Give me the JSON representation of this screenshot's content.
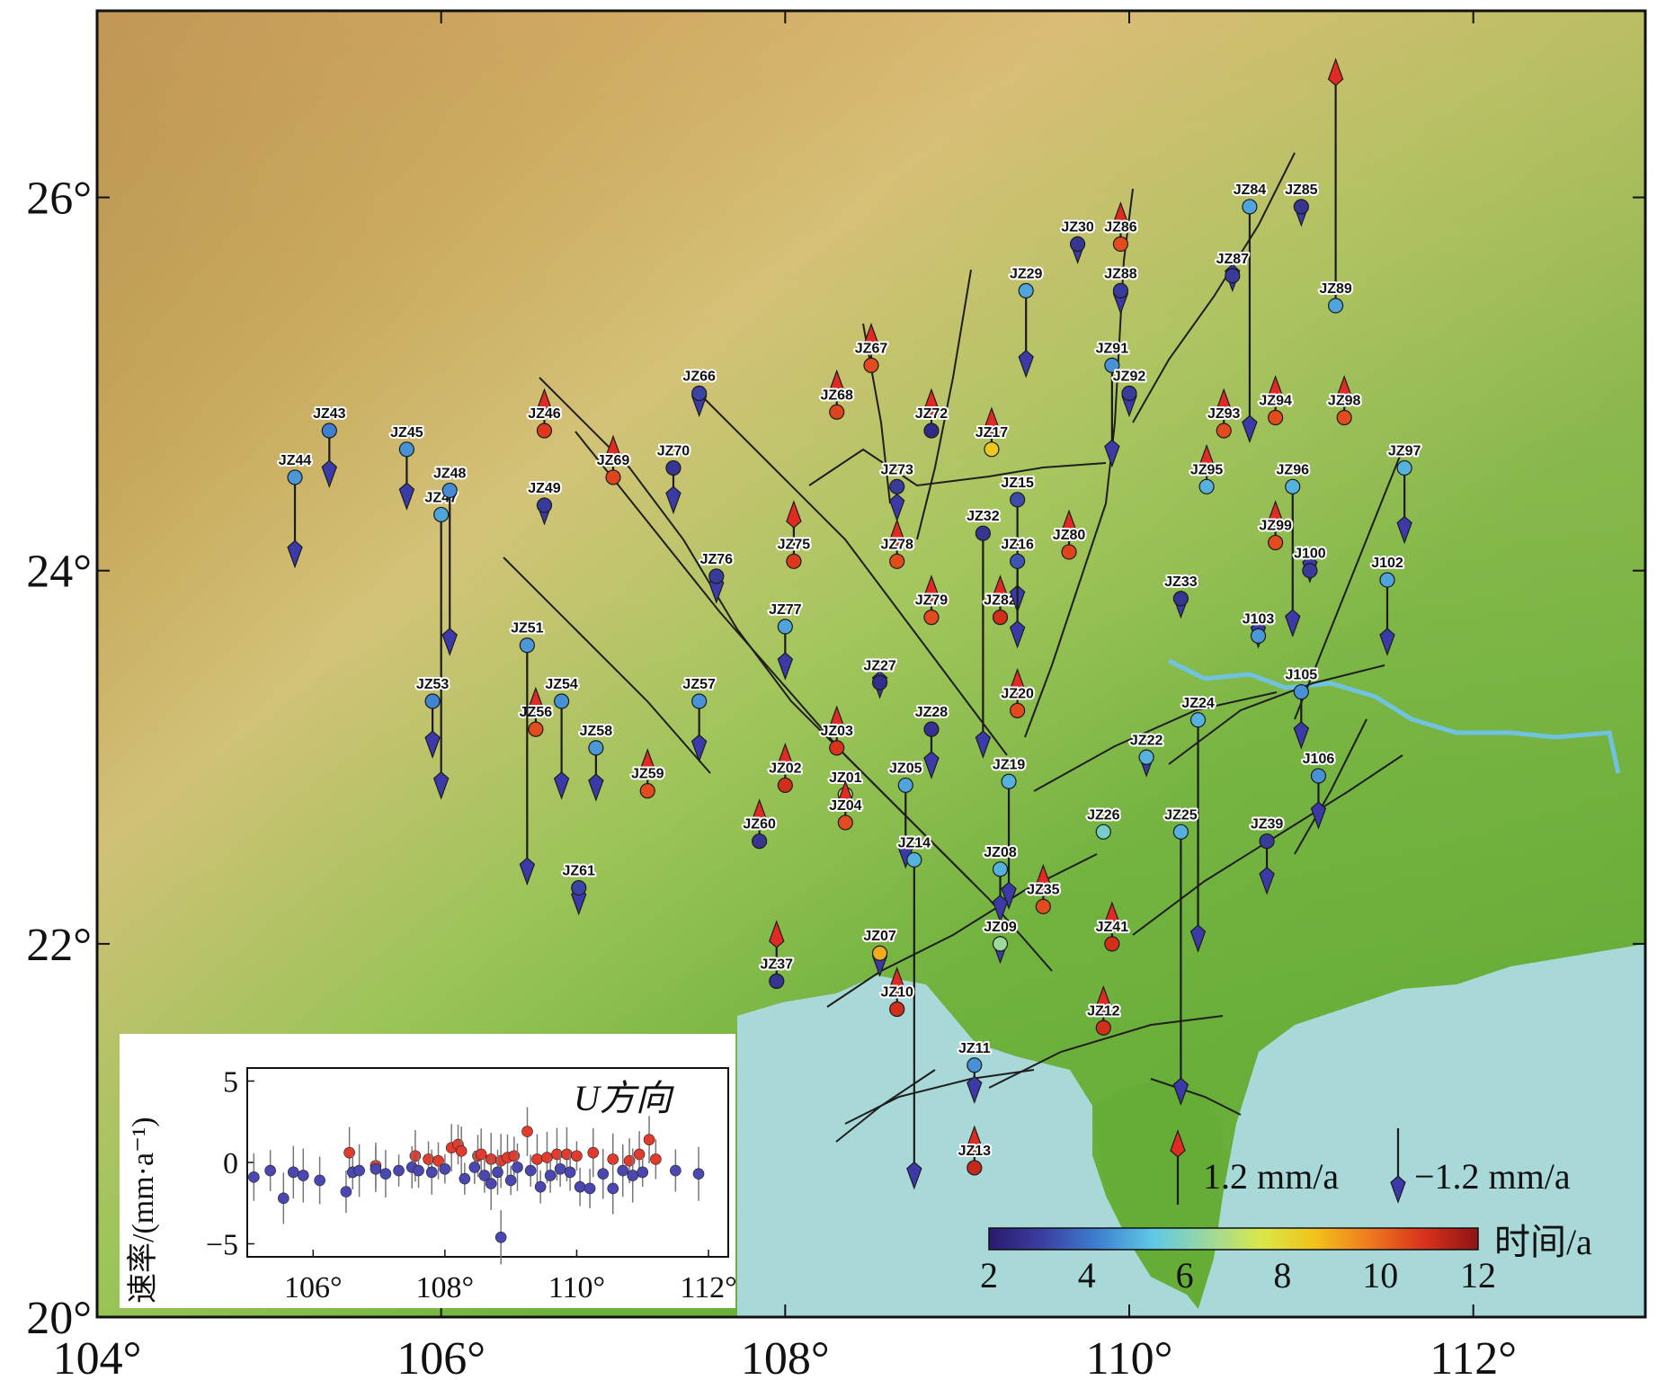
{
  "map": {
    "lon_range": [
      104,
      113
    ],
    "lat_range": [
      20,
      27
    ],
    "lon_ticks": [
      104,
      106,
      108,
      110,
      112
    ],
    "lat_ticks": [
      20,
      22,
      24,
      26
    ],
    "lon_tick_labels": [
      "104°",
      "106°",
      "108°",
      "110°",
      "112°"
    ],
    "lat_tick_labels": [
      "20°",
      "22°",
      "24°",
      "26°"
    ],
    "colors": {
      "land_high": "#b77a3a",
      "land_mid": "#d9c07a",
      "land_low": "#6fb33f",
      "sea": "#a9d8d8",
      "river": "#6fc3e0",
      "fault": "#1e1e1e"
    }
  },
  "stations": [
    {
      "name": "JZ43",
      "lon": 105.35,
      "lat": 24.75,
      "v": -1.5,
      "t": 4.2
    },
    {
      "name": "JZ45",
      "lon": 105.8,
      "lat": 24.65,
      "v": -1.6,
      "t": 4.5
    },
    {
      "name": "JZ44",
      "lon": 105.15,
      "lat": 24.5,
      "v": -2.4,
      "t": 4.6
    },
    {
      "name": "JZ47",
      "lon": 106.0,
      "lat": 24.3,
      "v": -7.6,
      "t": 4.8
    },
    {
      "name": "JZ48",
      "lon": 106.05,
      "lat": 24.43,
      "v": -4.4,
      "t": 4.4
    },
    {
      "name": "JZ46",
      "lon": 106.6,
      "lat": 24.75,
      "v": 1.1,
      "t": 10.8
    },
    {
      "name": "JZ49",
      "lon": 106.6,
      "lat": 24.35,
      "v": -0.5,
      "t": 3.0
    },
    {
      "name": "JZ69",
      "lon": 107.0,
      "lat": 24.5,
      "v": 1.1,
      "t": 10.6
    },
    {
      "name": "JZ70",
      "lon": 107.35,
      "lat": 24.55,
      "v": -1.2,
      "t": 2.8
    },
    {
      "name": "JZ66",
      "lon": 107.5,
      "lat": 24.95,
      "v": -0.6,
      "t": 3.2
    },
    {
      "name": "JZ76",
      "lon": 107.6,
      "lat": 23.97,
      "v": -0.7,
      "t": 3.0
    },
    {
      "name": "JZ75",
      "lon": 108.05,
      "lat": 24.05,
      "v": 1.6,
      "t": 10.8
    },
    {
      "name": "JZ77",
      "lon": 108.0,
      "lat": 23.7,
      "v": -1.4,
      "t": 4.8
    },
    {
      "name": "JZ67",
      "lon": 108.5,
      "lat": 25.1,
      "v": 1.1,
      "t": 10.5
    },
    {
      "name": "JZ68",
      "lon": 108.3,
      "lat": 24.85,
      "v": 1.1,
      "t": 10.6
    },
    {
      "name": "JZ72",
      "lon": 108.85,
      "lat": 24.75,
      "v": 1.1,
      "t": 2.5
    },
    {
      "name": "JZ17",
      "lon": 109.2,
      "lat": 24.65,
      "v": 1.1,
      "t": 8.5
    },
    {
      "name": "JZ73",
      "lon": 108.65,
      "lat": 24.45,
      "v": -0.9,
      "t": 3.0
    },
    {
      "name": "JZ78",
      "lon": 108.65,
      "lat": 24.05,
      "v": 1.1,
      "t": 10.5
    },
    {
      "name": "JZ79",
      "lon": 108.85,
      "lat": 23.75,
      "v": 1.1,
      "t": 10.5
    },
    {
      "name": "JZ32",
      "lon": 109.15,
      "lat": 24.2,
      "v": -6.0,
      "t": 2.8
    },
    {
      "name": "JZ82",
      "lon": 109.25,
      "lat": 23.75,
      "v": 1.1,
      "t": 11.0
    },
    {
      "name": "JZ15",
      "lon": 109.35,
      "lat": 24.38,
      "v": -3.0,
      "t": 3.3
    },
    {
      "name": "JZ16",
      "lon": 109.35,
      "lat": 24.05,
      "v": -2.3,
      "t": 3.5
    },
    {
      "name": "JZ80",
      "lon": 109.65,
      "lat": 24.1,
      "v": 1.1,
      "t": 10.6
    },
    {
      "name": "JZ27",
      "lon": 108.55,
      "lat": 23.4,
      "v": -0.4,
      "t": 2.6
    },
    {
      "name": "JZ28",
      "lon": 108.85,
      "lat": 23.15,
      "v": -1.3,
      "t": 2.7
    },
    {
      "name": "JZ20",
      "lon": 109.35,
      "lat": 23.25,
      "v": 1.1,
      "t": 10.5
    },
    {
      "name": "JZ03",
      "lon": 108.3,
      "lat": 23.05,
      "v": 1.1,
      "t": 10.9
    },
    {
      "name": "JZ02",
      "lon": 108.0,
      "lat": 22.85,
      "v": 1.1,
      "t": 11.0
    },
    {
      "name": "JZ01",
      "lon": 108.35,
      "lat": 22.8,
      "v": -0.5,
      "t": 7.0
    },
    {
      "name": "JZ05",
      "lon": 108.7,
      "lat": 22.85,
      "v": -2.2,
      "t": 4.8
    },
    {
      "name": "JZ19",
      "lon": 109.3,
      "lat": 22.87,
      "v": -3.4,
      "t": 5.0
    },
    {
      "name": "JZ04",
      "lon": 108.35,
      "lat": 22.65,
      "v": 1.1,
      "t": 10.5
    },
    {
      "name": "JZ14",
      "lon": 108.75,
      "lat": 22.45,
      "v": -8.8,
      "t": 5.0
    },
    {
      "name": "JZ08",
      "lon": 109.25,
      "lat": 22.4,
      "v": -1.4,
      "t": 5.0
    },
    {
      "name": "JZ26",
      "lon": 109.85,
      "lat": 22.6,
      "v": 0,
      "t": 5.8
    },
    {
      "name": "JZ35",
      "lon": 109.5,
      "lat": 22.2,
      "v": 1.1,
      "t": 10.5
    },
    {
      "name": "JZ09",
      "lon": 109.25,
      "lat": 22.0,
      "v": -0.5,
      "t": 6.5
    },
    {
      "name": "JZ41",
      "lon": 109.9,
      "lat": 22.0,
      "v": 1.1,
      "t": 11.0
    },
    {
      "name": "JZ07",
      "lon": 108.55,
      "lat": 21.95,
      "v": -0.6,
      "t": 9.0
    },
    {
      "name": "JZ10",
      "lon": 108.65,
      "lat": 21.65,
      "v": 1.1,
      "t": 11.0
    },
    {
      "name": "JZ11",
      "lon": 109.1,
      "lat": 21.35,
      "v": -1.0,
      "t": 4.5
    },
    {
      "name": "JZ12",
      "lon": 109.85,
      "lat": 21.55,
      "v": 1.1,
      "t": 11.0
    },
    {
      "name": "JZ13",
      "lon": 109.1,
      "lat": 20.8,
      "v": 1.1,
      "t": 11.2
    },
    {
      "name": "JZ37",
      "lon": 107.95,
      "lat": 21.8,
      "v": 1.6,
      "t": 2.8
    },
    {
      "name": "JZ60",
      "lon": 107.85,
      "lat": 22.55,
      "v": 1.1,
      "t": 2.8
    },
    {
      "name": "JZ57",
      "lon": 107.5,
      "lat": 23.3,
      "v": -1.6,
      "t": 4.5
    },
    {
      "name": "JZ59",
      "lon": 107.2,
      "lat": 22.82,
      "v": 1.1,
      "t": 10.5
    },
    {
      "name": "JZ58",
      "lon": 106.9,
      "lat": 23.05,
      "v": -1.4,
      "t": 4.6
    },
    {
      "name": "JZ54",
      "lon": 106.7,
      "lat": 23.3,
      "v": -2.6,
      "t": 4.5
    },
    {
      "name": "JZ56",
      "lon": 106.55,
      "lat": 23.15,
      "v": 1.1,
      "t": 10.5
    },
    {
      "name": "JZ51",
      "lon": 106.5,
      "lat": 23.6,
      "v": -6.4,
      "t": 4.6
    },
    {
      "name": "JZ53",
      "lon": 105.95,
      "lat": 23.3,
      "v": -1.5,
      "t": 4.3
    },
    {
      "name": "JZ61",
      "lon": 106.8,
      "lat": 22.3,
      "v": -0.7,
      "t": 3.2
    },
    {
      "name": "JZ30",
      "lon": 109.7,
      "lat": 25.75,
      "v": -0.5,
      "t": 2.8
    },
    {
      "name": "JZ86",
      "lon": 109.95,
      "lat": 25.75,
      "v": 1.1,
      "t": 10.5
    },
    {
      "name": "JZ29",
      "lon": 109.4,
      "lat": 25.5,
      "v": -2.3,
      "t": 4.8
    },
    {
      "name": "JZ88",
      "lon": 109.95,
      "lat": 25.5,
      "v": -0.6,
      "t": 3.0
    },
    {
      "name": "JZ91",
      "lon": 109.9,
      "lat": 25.1,
      "v": -2.7,
      "t": 4.5
    },
    {
      "name": "JZ92",
      "lon": 110.0,
      "lat": 24.95,
      "v": -0.6,
      "t": 3.0
    },
    {
      "name": "JZ84",
      "lon": 110.7,
      "lat": 25.95,
      "v": -6.3,
      "t": 4.8
    },
    {
      "name": "JZ85",
      "lon": 111.0,
      "lat": 25.95,
      "v": -0.5,
      "t": 2.8
    },
    {
      "name": "JZ87",
      "lon": 110.6,
      "lat": 25.58,
      "v": -0.4,
      "t": 3.0
    },
    {
      "name": "JZ89",
      "lon": 111.2,
      "lat": 25.42,
      "v": 6.6,
      "t": 4.8
    },
    {
      "name": "JZ93",
      "lon": 110.55,
      "lat": 24.75,
      "v": 1.1,
      "t": 10.5
    },
    {
      "name": "JZ95",
      "lon": 110.45,
      "lat": 24.45,
      "v": 1.1,
      "t": 5.0
    },
    {
      "name": "JZ94",
      "lon": 110.85,
      "lat": 24.82,
      "v": 1.1,
      "t": 10.5
    },
    {
      "name": "JZ98",
      "lon": 111.25,
      "lat": 24.82,
      "v": 1.1,
      "t": 10.5
    },
    {
      "name": "JZ96",
      "lon": 110.95,
      "lat": 24.45,
      "v": -4.0,
      "t": 5.0
    },
    {
      "name": "JZ97",
      "lon": 111.6,
      "lat": 24.55,
      "v": -2.0,
      "t": 5.0
    },
    {
      "name": "JZ99",
      "lon": 110.85,
      "lat": 24.15,
      "v": 1.1,
      "t": 10.5
    },
    {
      "name": "J100",
      "lon": 111.05,
      "lat": 24.0,
      "v": -0.3,
      "t": 3.0
    },
    {
      "name": "J102",
      "lon": 111.5,
      "lat": 23.95,
      "v": -2.0,
      "t": 4.8
    },
    {
      "name": "JZ33",
      "lon": 110.3,
      "lat": 23.85,
      "v": -0.5,
      "t": 2.8
    },
    {
      "name": "J103",
      "lon": 110.75,
      "lat": 23.65,
      "v": -0.3,
      "t": 4.6
    },
    {
      "name": "J105",
      "lon": 111.0,
      "lat": 23.35,
      "v": -1.5,
      "t": 4.5
    },
    {
      "name": "JZ24",
      "lon": 110.4,
      "lat": 23.2,
      "v": -6.2,
      "t": 5.0
    },
    {
      "name": "JZ22",
      "lon": 110.1,
      "lat": 23.0,
      "v": -0.5,
      "t": 5.0
    },
    {
      "name": "J106",
      "lon": 111.1,
      "lat": 22.9,
      "v": -1.4,
      "t": 4.5
    },
    {
      "name": "JZ25",
      "lon": 110.3,
      "lat": 22.6,
      "v": -7.3,
      "t": 5.0
    },
    {
      "name": "JZ39",
      "lon": 110.8,
      "lat": 22.55,
      "v": -1.4,
      "t": 3.0
    }
  ],
  "legend": {
    "ref_up_label": "1.2 mm/a",
    "ref_down_label": "−1.2 mm/a",
    "colorbar_title": "时间/a",
    "colorbar_ticks": [
      "2",
      "4",
      "6",
      "8",
      "10",
      "12"
    ],
    "colorbar_stops": [
      "#2a1a6e",
      "#3b3fa0",
      "#3f7fd0",
      "#5ec8e6",
      "#9ad7a0",
      "#d8e84a",
      "#f2c21a",
      "#ef7a1e",
      "#d9321c",
      "#8e1414"
    ]
  },
  "chart_data": {
    "type": "scatter",
    "title": "U方向",
    "xlabel": "",
    "ylabel": "速率/(mm·a⁻¹)",
    "xlim": [
      105,
      112.3
    ],
    "ylim": [
      -5.8,
      5.8
    ],
    "x_ticks": [
      "106°",
      "108°",
      "110°",
      "112°"
    ],
    "x_tick_values": [
      106,
      108,
      110,
      112
    ],
    "y_ticks": [
      "5",
      "0",
      "−5"
    ],
    "y_tick_values": [
      5,
      0,
      -5
    ],
    "series": [
      {
        "color": "#e23b2e",
        "points": [
          [
            106.55,
            0.6
          ],
          [
            106.95,
            -0.2
          ],
          [
            107.55,
            0.4
          ],
          [
            107.75,
            0.2
          ],
          [
            107.9,
            0.1
          ],
          [
            108.1,
            0.9
          ],
          [
            108.2,
            1.1
          ],
          [
            108.25,
            0.7
          ],
          [
            108.5,
            0.4
          ],
          [
            108.55,
            0.5
          ],
          [
            108.7,
            0.2
          ],
          [
            108.85,
            0.1
          ],
          [
            108.95,
            0.3
          ],
          [
            109.05,
            0.4
          ],
          [
            109.25,
            1.9
          ],
          [
            109.4,
            0.2
          ],
          [
            109.55,
            0.3
          ],
          [
            109.7,
            0.5
          ],
          [
            109.85,
            0.5
          ],
          [
            110.0,
            0.4
          ],
          [
            110.25,
            0.6
          ],
          [
            110.55,
            0.2
          ],
          [
            110.8,
            0.1
          ],
          [
            110.95,
            0.5
          ],
          [
            111.1,
            1.4
          ],
          [
            111.2,
            0.2
          ]
        ]
      },
      {
        "color": "#4b47b0",
        "points": [
          [
            105.1,
            -0.9
          ],
          [
            105.35,
            -0.5
          ],
          [
            105.55,
            -2.2
          ],
          [
            105.7,
            -0.6
          ],
          [
            105.85,
            -0.8
          ],
          [
            106.1,
            -1.1
          ],
          [
            106.5,
            -1.8
          ],
          [
            106.6,
            -0.6
          ],
          [
            106.7,
            -0.5
          ],
          [
            106.95,
            -0.4
          ],
          [
            107.1,
            -0.7
          ],
          [
            107.3,
            -0.5
          ],
          [
            107.5,
            -0.3
          ],
          [
            107.6,
            -0.5
          ],
          [
            107.8,
            -0.6
          ],
          [
            108.0,
            -0.4
          ],
          [
            108.3,
            -1.0
          ],
          [
            108.45,
            -0.3
          ],
          [
            108.6,
            -0.8
          ],
          [
            108.7,
            -1.3
          ],
          [
            108.8,
            -0.6
          ],
          [
            108.85,
            -4.6
          ],
          [
            109.0,
            -1.1
          ],
          [
            109.1,
            -0.3
          ],
          [
            109.3,
            -0.5
          ],
          [
            109.45,
            -1.5
          ],
          [
            109.6,
            -0.8
          ],
          [
            109.75,
            -0.4
          ],
          [
            109.9,
            -0.6
          ],
          [
            110.05,
            -1.5
          ],
          [
            110.2,
            -1.6
          ],
          [
            110.4,
            -0.7
          ],
          [
            110.55,
            -1.6
          ],
          [
            110.7,
            -0.5
          ],
          [
            110.85,
            -0.8
          ],
          [
            111.0,
            -0.6
          ],
          [
            111.5,
            -0.5
          ],
          [
            111.85,
            -0.7
          ]
        ]
      }
    ]
  }
}
